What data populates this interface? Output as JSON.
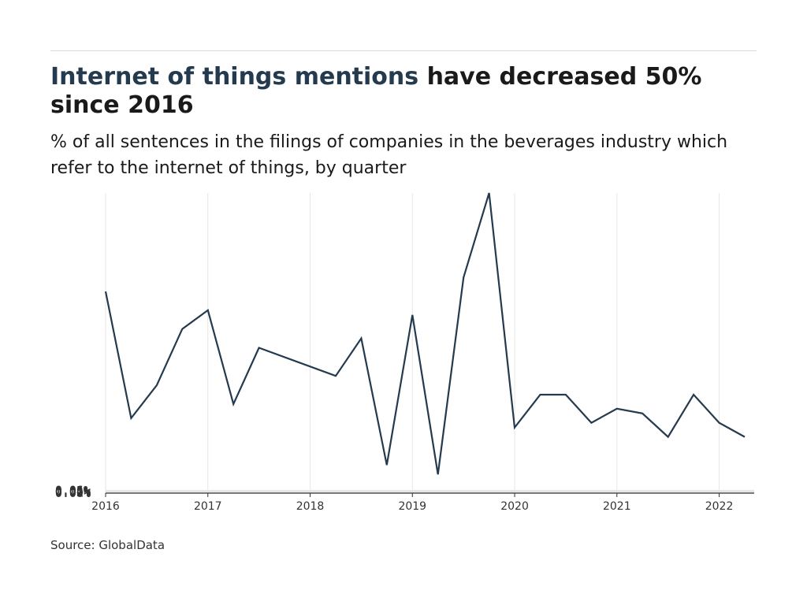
{
  "header": {
    "title_highlight": "Internet of things mentions",
    "title_rest": " have decreased 50% since 2016",
    "subtitle": "% of all sentences in the filings of companies in the beverages industry which refer to the internet of things, by quarter"
  },
  "footer": {
    "source": "Source: GlobalData"
  },
  "colors": {
    "line": "#243a4f",
    "highlight": "#243a4f",
    "grid": "#e6e6e6"
  },
  "chart_data": {
    "type": "line",
    "title": "Internet of things mentions have decreased 50% since 2016",
    "subtitle": "% of all sentences in the filings of companies in the beverages industry which refer to the internet of things, by quarter",
    "xlabel": "",
    "ylabel": "",
    "x": [
      "2016-Q1",
      "2016-Q2",
      "2016-Q3",
      "2016-Q4",
      "2017-Q1",
      "2017-Q2",
      "2017-Q3",
      "2018-Q2",
      "2018-Q3",
      "2018-Q4",
      "2019-Q1",
      "2019-Q2",
      "2019-Q3",
      "2019-Q4",
      "2020-Q1",
      "2020-Q2",
      "2020-Q3",
      "2020-Q4",
      "2021-Q1",
      "2021-Q2",
      "2021-Q3",
      "2021-Q4",
      "2022-Q1",
      "2022-Q2"
    ],
    "series": [
      {
        "values": [
          0.043,
          0.016,
          0.023,
          0.035,
          0.039,
          0.019,
          0.031,
          0.025,
          0.033,
          0.006,
          0.038,
          0.004,
          0.046,
          0.064,
          0.014,
          0.021,
          0.021,
          0.015,
          0.018,
          0.017,
          0.012,
          0.021,
          0.015,
          0.012
        ]
      }
    ],
    "x_ticks": [
      "2016",
      "2017",
      "2018",
      "2019",
      "2020",
      "2021",
      "2022"
    ],
    "y_ticks": [
      "0.00%",
      "0.01%",
      "0.02%",
      "0.03%",
      "0.04%",
      "0.05%",
      "0.06%"
    ],
    "ylim": [
      0,
      0.064
    ],
    "xlim": [
      "2016-Q1",
      "2022-Q2"
    ],
    "grid": true,
    "legend": "none"
  }
}
